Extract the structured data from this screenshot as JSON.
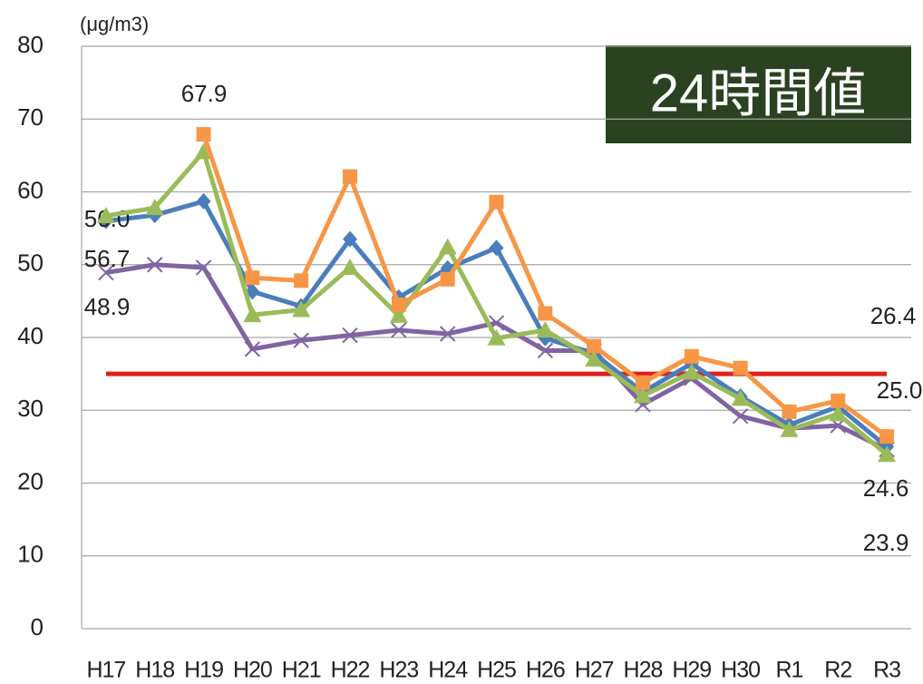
{
  "chart_data": {
    "type": "line",
    "unit_label": "(μg/m3)",
    "badge": "24時間値",
    "categories": [
      "H17",
      "H18",
      "H19",
      "H20",
      "H21",
      "H22",
      "H23",
      "H24",
      "H25",
      "H26",
      "H27",
      "H28",
      "H29",
      "H30",
      "R1",
      "R2",
      "R3"
    ],
    "ylim": [
      0,
      80
    ],
    "yticks": [
      0,
      10,
      20,
      30,
      40,
      50,
      60,
      70,
      80
    ],
    "grid": true,
    "reference_line": {
      "value": 35,
      "color": "#e0201b"
    },
    "series": [
      {
        "color": "#4a7ebb",
        "marker": "diamond",
        "values": [
          56.0,
          56.8,
          58.7,
          46.3,
          44.3,
          53.5,
          45.5,
          49.5,
          52.3,
          39.9,
          37.8,
          32.5,
          36.4,
          31.9,
          28.0,
          30.5,
          25.0
        ],
        "value_labels": [
          "56.0",
          null,
          null,
          null,
          null,
          null,
          null,
          null,
          null,
          null,
          null,
          null,
          null,
          null,
          null,
          null,
          "25.0"
        ]
      },
      {
        "color": "#f79646",
        "marker": "square",
        "values": [
          null,
          null,
          67.9,
          48.2,
          47.8,
          62.1,
          44.5,
          48.0,
          58.6,
          43.3,
          38.8,
          33.8,
          37.4,
          35.8,
          29.8,
          31.3,
          26.4
        ],
        "value_labels": [
          null,
          null,
          "67.9",
          null,
          null,
          null,
          null,
          null,
          null,
          null,
          null,
          null,
          null,
          null,
          null,
          null,
          "26.4"
        ]
      },
      {
        "color": "#9bbb59",
        "marker": "triangle",
        "values": [
          56.7,
          57.8,
          65.5,
          43.1,
          43.8,
          49.6,
          43.0,
          52.4,
          39.9,
          41.0,
          37.0,
          32.0,
          35.2,
          31.6,
          27.3,
          29.5,
          23.9
        ],
        "value_labels": [
          "56.7",
          null,
          null,
          null,
          null,
          null,
          null,
          null,
          null,
          null,
          null,
          null,
          null,
          null,
          null,
          null,
          "23.9"
        ]
      },
      {
        "color": "#8064a2",
        "marker": "x",
        "values": [
          48.9,
          50.0,
          49.6,
          38.4,
          39.6,
          40.3,
          41.0,
          40.5,
          42.0,
          38.2,
          38.2,
          30.8,
          34.4,
          29.2,
          27.5,
          27.9,
          24.6
        ],
        "value_labels": [
          "48.9",
          null,
          null,
          null,
          null,
          null,
          null,
          null,
          null,
          null,
          null,
          null,
          null,
          null,
          null,
          null,
          "24.6"
        ]
      }
    ]
  }
}
